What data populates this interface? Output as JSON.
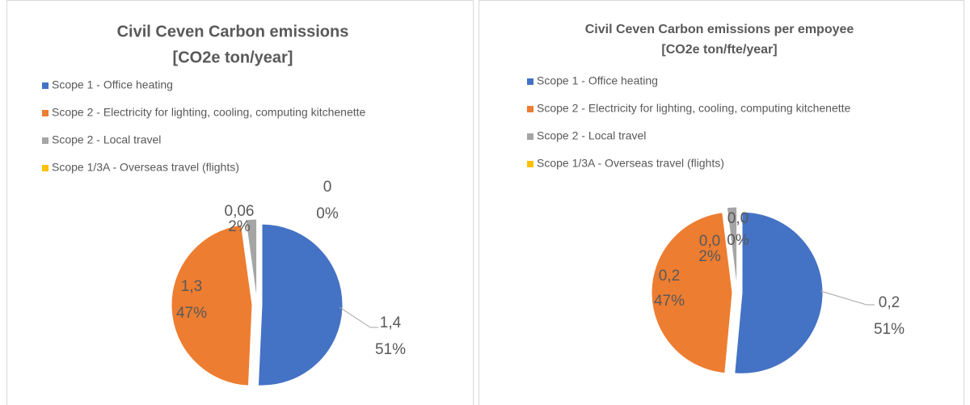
{
  "chart_data": [
    {
      "type": "pie",
      "title": "Civil Ceven Carbon emissions",
      "subtitle": "[CO2e ton/year]",
      "categories": [
        "Scope 1 - Office heating",
        "Scope 2 - Electricity for lighting, cooling, computing kitchenette",
        "Scope 2 - Local travel",
        "Scope 1/3A - Overseas travel (flights)"
      ],
      "values": [
        1.4,
        1.3,
        0.06,
        0
      ],
      "value_labels": [
        "1,4",
        "1,3",
        "0,06",
        "0"
      ],
      "percentage_labels": [
        "51%",
        "47%",
        "2%",
        "0%"
      ],
      "colors": [
        "#4472c4",
        "#ed7d31",
        "#a5a5a5",
        "#ffc000"
      ],
      "legend": "top-left"
    },
    {
      "type": "pie",
      "title": "Civil Ceven Carbon emissions per empoyee",
      "subtitle": "[CO2e ton/fte/year]",
      "categories": [
        "Scope 1 - Office heating",
        "Scope 2 - Electricity for lighting, cooling, computing kitchenette",
        "Scope 2 - Local travel",
        "Scope 1/3A - Overseas travel (flights)"
      ],
      "values": [
        0.21,
        0.19,
        0.008,
        0
      ],
      "value_labels": [
        "0,2",
        "0,2",
        "0,0",
        "0,0"
      ],
      "percentage_labels": [
        "51%",
        "47%",
        "2%",
        "0%"
      ],
      "colors": [
        "#4472c4",
        "#ed7d31",
        "#a5a5a5",
        "#ffc000"
      ],
      "legend": "top-left"
    }
  ]
}
